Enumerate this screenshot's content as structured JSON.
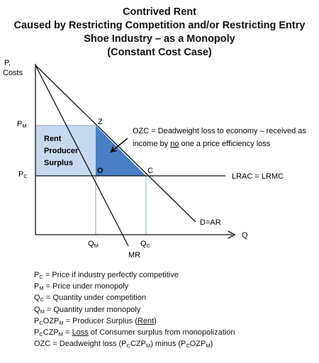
{
  "title": {
    "line1": "Contrived Rent",
    "line2": "Caused by Restricting Competition and/or Restricting Entry",
    "line3": "Shoe Industry – as a Monopoly",
    "line4": "(Constant Cost Case)"
  },
  "axes": {
    "y_label_1": "P,",
    "y_label_2": "Costs",
    "x_label": "Q"
  },
  "ticks": {
    "pm": {
      "main": "P",
      "sub": "M"
    },
    "pc": {
      "main": "P",
      "sub": "C"
    },
    "qm": {
      "main": "Q",
      "sub": "M"
    },
    "qc": {
      "main": "Q",
      "sub": "C"
    }
  },
  "points": {
    "z": "Z",
    "o": "O",
    "c": "C"
  },
  "regions": {
    "rent_line1": "Rent",
    "rent_line2": "Producer",
    "rent_line3": "Surplus"
  },
  "curves": {
    "lrac": "LRAC = LRMC",
    "demand": "D=AR",
    "mr": "MR"
  },
  "annotation": {
    "line1": "OZC = Deadweight loss to economy – received as",
    "line2_pre": "income by ",
    "line2_underlined": "no",
    "line2_post": " one a price efficiency loss"
  },
  "legend": {
    "l1": {
      "a": "P",
      "a_sub": "C",
      "text": " = Price if industry perfectly competitive"
    },
    "l2": {
      "a": "P",
      "a_sub": "M",
      "text": " = Price under monopoly"
    },
    "l3": {
      "a": "Q",
      "a_sub": "C",
      "text": " = Quantity under competition"
    },
    "l4": {
      "a": "Q",
      "a_sub": "M",
      "text": " = Quantity under monopoly"
    },
    "l5": {
      "p1": "P",
      "s1": "C",
      "p2": "OZP",
      "s2": "M",
      "text": " = Producer Surplus (",
      "u": "Rent",
      "end": ")"
    },
    "l6": {
      "p1": "P",
      "s1": "C",
      "p2": "CZP",
      "s2": "M",
      "mid": " = ",
      "u": "Loss",
      "text": " of Consumer surplus from monopolization"
    },
    "l7": {
      "text": "OZC = Deadweight loss (P",
      "s1": "C",
      "t2": "CZP",
      "s2": "M",
      "t3": ") minus (P",
      "s3": "C",
      "t4": "OZP",
      "s4": "M",
      "t5": ")"
    }
  },
  "colors": {
    "rent_fill": "#c6d9f1",
    "deadweight_fill": "#4a7ec4",
    "arrow": "#111111"
  }
}
